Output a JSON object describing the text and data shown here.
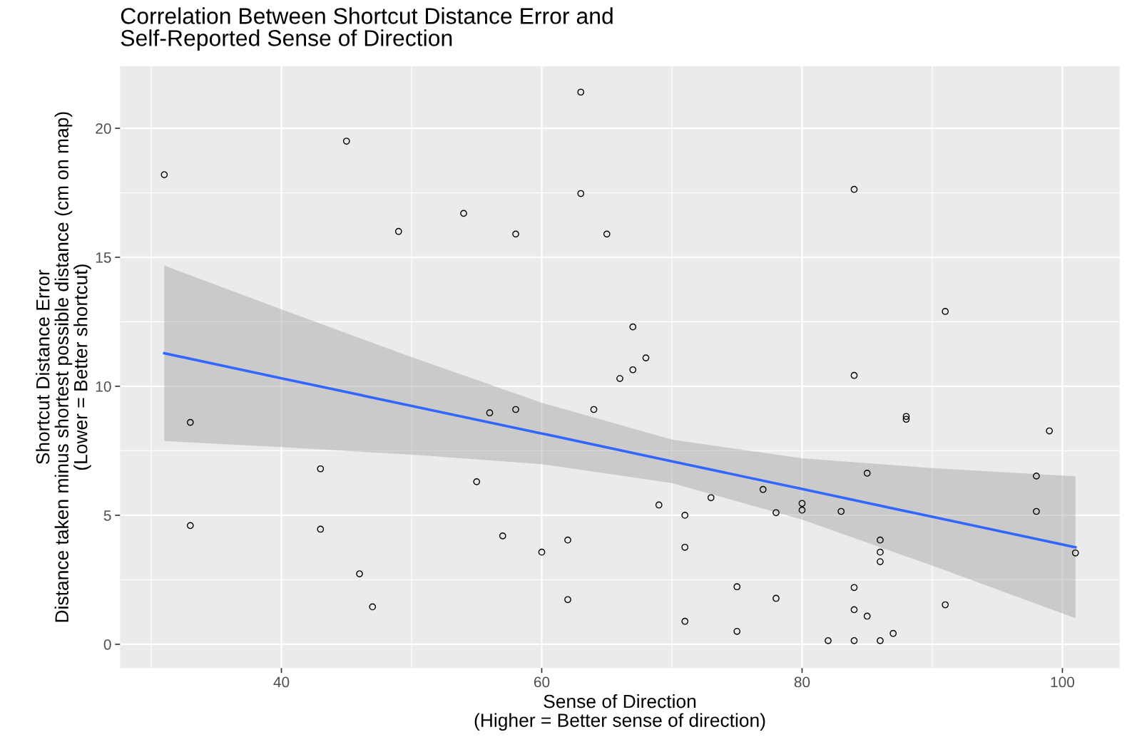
{
  "chart_data": {
    "type": "scatter",
    "title": "Correlation Between Shortcut Distance Error and\nSelf-Reported Sense of Direction",
    "xlabel": "Sense of Direction\n(Higher = Better sense of direction)",
    "ylabel": "Shortcut Distance Error\nDistance taken minus shortest possible distance (cm on map)\n(Lower = Better shortcut)",
    "xlim": [
      27.6,
      104.4
    ],
    "ylim": [
      -0.92,
      22.4
    ],
    "xticks": [
      40,
      60,
      80,
      100
    ],
    "yticks": [
      0,
      5,
      10,
      15,
      20
    ],
    "grid": true,
    "series": [
      {
        "type": "line",
        "marker": "none",
        "color": "#3366ff",
        "x": [
          31,
          40,
          50,
          60,
          70,
          80,
          90,
          101
        ],
        "values": [
          11.28,
          10.31,
          9.24,
          8.17,
          7.09,
          6.02,
          4.94,
          3.76
        ],
        "lower": [
          7.88,
          7.64,
          7.35,
          6.98,
          6.25,
          4.83,
          3.05,
          1.01
        ],
        "upper": [
          14.68,
          12.98,
          11.13,
          9.36,
          7.93,
          7.21,
          6.83,
          6.51
        ]
      },
      {
        "marker": "circle",
        "color": "#000000",
        "x": [
          31,
          33,
          33,
          43,
          43,
          45,
          46,
          47,
          49,
          54,
          55,
          56,
          57,
          58,
          58,
          60,
          62,
          62,
          63,
          63,
          64,
          65,
          66,
          67,
          67,
          68,
          69,
          71,
          71,
          71,
          73,
          75,
          75,
          77,
          78,
          78,
          80,
          80,
          82,
          83,
          84,
          84,
          84,
          84,
          84,
          85,
          85,
          86,
          86,
          86,
          86,
          87,
          88,
          88,
          91,
          91,
          98,
          98,
          99,
          101
        ],
        "values": [
          18.2,
          8.6,
          4.6,
          6.8,
          4.46,
          19.5,
          2.73,
          1.45,
          16.0,
          16.7,
          6.3,
          8.97,
          4.2,
          15.9,
          9.1,
          3.57,
          4.04,
          1.73,
          21.4,
          17.47,
          9.1,
          15.9,
          10.3,
          12.3,
          10.64,
          11.1,
          5.4,
          5.0,
          3.76,
          0.89,
          5.68,
          2.23,
          0.5,
          6.0,
          5.1,
          1.78,
          5.46,
          5.2,
          0.14,
          5.15,
          17.63,
          10.42,
          2.2,
          1.34,
          0.14,
          6.63,
          1.09,
          4.04,
          3.57,
          3.2,
          0.14,
          0.42,
          8.83,
          8.72,
          12.9,
          1.53,
          6.52,
          5.15,
          8.27,
          3.54
        ]
      }
    ]
  }
}
